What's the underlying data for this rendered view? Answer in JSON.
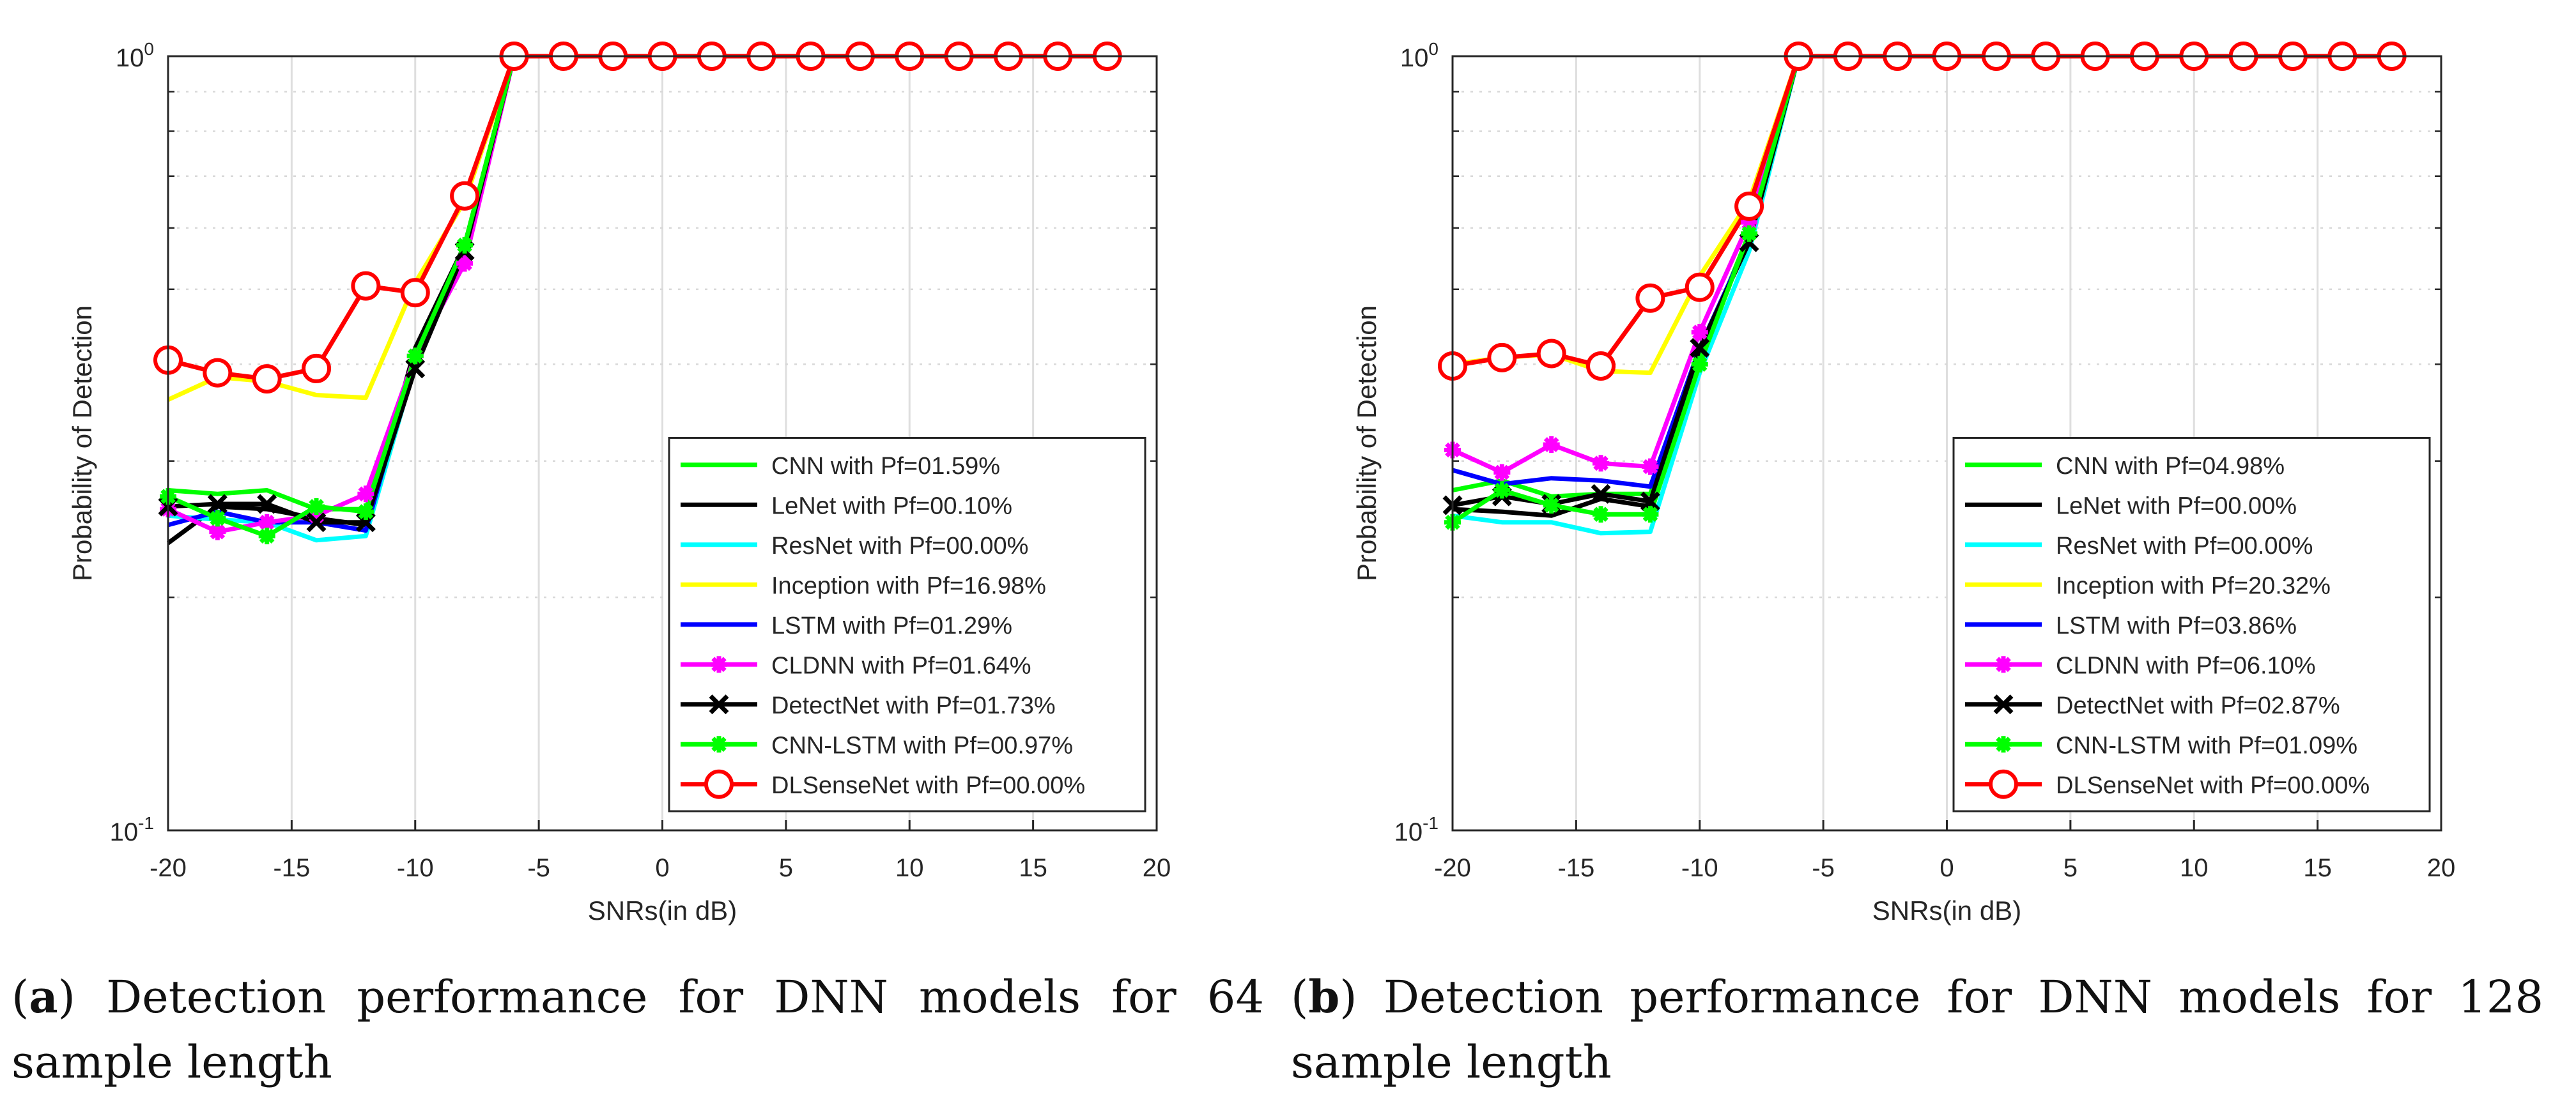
{
  "chart_data": [
    {
      "id": "a",
      "type": "line",
      "yscale": "log",
      "xlabel": "SNRs(in dB)",
      "ylabel": "Probability of Detection",
      "xlim": [
        -20,
        20
      ],
      "ylim": [
        0.1,
        1
      ],
      "xticks": [
        "-20",
        "-15",
        "-10",
        "-5",
        "0",
        "5",
        "10",
        "15",
        "20"
      ],
      "yticks": [
        {
          "base": "10",
          "exp": "-1"
        },
        {
          "base": "10",
          "exp": "0"
        }
      ],
      "grid": true,
      "legend_position": "lower-right",
      "x": [
        -20,
        -18,
        -16,
        -14,
        -12,
        -10,
        -8,
        -6,
        -4,
        -2,
        0,
        2,
        4,
        6,
        8,
        10,
        12,
        14,
        16,
        18
      ],
      "series": [
        {
          "name": "CNN with Pf=01.59%",
          "color": "#00ff00",
          "marker": "none",
          "values": [
            0.275,
            0.272,
            0.275,
            0.26,
            0.26,
            0.41,
            0.57,
            1,
            1,
            1,
            1,
            1,
            1,
            1,
            1,
            1,
            1,
            1,
            1,
            1
          ]
        },
        {
          "name": "LeNet with Pf=00.10%",
          "color": "#000000",
          "marker": "none",
          "values": [
            0.235,
            0.262,
            0.26,
            0.253,
            0.248,
            0.42,
            0.57,
            1,
            1,
            1,
            1,
            1,
            1,
            1,
            1,
            1,
            1,
            1,
            1,
            1
          ]
        },
        {
          "name": "ResNet with Pf=00.00%",
          "color": "#00ffff",
          "marker": "none",
          "values": [
            0.255,
            0.252,
            0.25,
            0.237,
            0.24,
            0.4,
            0.56,
            1,
            1,
            1,
            1,
            1,
            1,
            1,
            1,
            1,
            1,
            1,
            1,
            1
          ]
        },
        {
          "name": "Inception with Pf=16.98%",
          "color": "#ffff00",
          "marker": "none",
          "values": [
            0.36,
            0.385,
            0.38,
            0.365,
            0.362,
            0.51,
            0.65,
            1,
            1,
            1,
            1,
            1,
            1,
            1,
            1,
            1,
            1,
            1,
            1,
            1
          ]
        },
        {
          "name": "LSTM with Pf=01.29%",
          "color": "#0000ff",
          "marker": "none",
          "values": [
            0.248,
            0.258,
            0.25,
            0.25,
            0.244,
            0.41,
            0.56,
            1,
            1,
            1,
            1,
            1,
            1,
            1,
            1,
            1,
            1,
            1,
            1,
            1
          ]
        },
        {
          "name": "CLDNN with Pf=01.64%",
          "color": "#ff00ff",
          "marker": "asterisk",
          "values": [
            0.26,
            0.243,
            0.25,
            0.255,
            0.272,
            0.41,
            0.54,
            1,
            1,
            1,
            1,
            1,
            1,
            1,
            1,
            1,
            1,
            1,
            1,
            1
          ]
        },
        {
          "name": "DetectNet with Pf=01.73%",
          "color": "#000000",
          "marker": "x",
          "values": [
            0.262,
            0.264,
            0.264,
            0.25,
            0.25,
            0.395,
            0.56,
            1,
            1,
            1,
            1,
            1,
            1,
            1,
            1,
            1,
            1,
            1,
            1,
            1
          ]
        },
        {
          "name": "CNN-LSTM with Pf=00.97%",
          "color": "#00ff00",
          "marker": "asterisk",
          "values": [
            0.27,
            0.253,
            0.24,
            0.262,
            0.258,
            0.41,
            0.57,
            1,
            1,
            1,
            1,
            1,
            1,
            1,
            1,
            1,
            1,
            1,
            1,
            1
          ]
        },
        {
          "name": "DLSenseNet with Pf=00.00%",
          "color": "#ff0000",
          "marker": "circle",
          "values": [
            0.405,
            0.39,
            0.383,
            0.395,
            0.505,
            0.495,
            0.66,
            1,
            1,
            1,
            1,
            1,
            1,
            1,
            1,
            1,
            1,
            1,
            1,
            1
          ]
        }
      ]
    },
    {
      "id": "b",
      "type": "line",
      "yscale": "log",
      "xlabel": "SNRs(in dB)",
      "ylabel": "Probability of Detection",
      "xlim": [
        -20,
        20
      ],
      "ylim": [
        0.1,
        1
      ],
      "xticks": [
        "-20",
        "-15",
        "-10",
        "-5",
        "0",
        "5",
        "10",
        "15",
        "20"
      ],
      "yticks": [
        {
          "base": "10",
          "exp": "-1"
        },
        {
          "base": "10",
          "exp": "0"
        }
      ],
      "grid": true,
      "legend_position": "lower-right",
      "x": [
        -20,
        -18,
        -16,
        -14,
        -12,
        -10,
        -8,
        -6,
        -4,
        -2,
        0,
        2,
        4,
        6,
        8,
        10,
        12,
        14,
        16,
        18
      ],
      "series": [
        {
          "name": "CNN with Pf=04.98%",
          "color": "#00ff00",
          "marker": "none",
          "values": [
            0.275,
            0.283,
            0.27,
            0.272,
            0.272,
            0.41,
            0.59,
            1,
            1,
            1,
            1,
            1,
            1,
            1,
            1,
            1,
            1,
            1,
            1,
            1
          ]
        },
        {
          "name": "LeNet with Pf=00.00%",
          "color": "#000000",
          "marker": "none",
          "values": [
            0.26,
            0.258,
            0.255,
            0.268,
            0.262,
            0.42,
            0.58,
            1,
            1,
            1,
            1,
            1,
            1,
            1,
            1,
            1,
            1,
            1,
            1,
            1
          ]
        },
        {
          "name": "ResNet with Pf=00.00%",
          "color": "#00ffff",
          "marker": "none",
          "values": [
            0.255,
            0.25,
            0.25,
            0.242,
            0.243,
            0.39,
            0.56,
            1,
            1,
            1,
            1,
            1,
            1,
            1,
            1,
            1,
            1,
            1,
            1,
            1
          ]
        },
        {
          "name": "Inception with Pf=20.32%",
          "color": "#ffff00",
          "marker": "none",
          "values": [
            0.4,
            0.408,
            0.412,
            0.392,
            0.39,
            0.52,
            0.65,
            1,
            1,
            1,
            1,
            1,
            1,
            1,
            1,
            1,
            1,
            1,
            1,
            1
          ]
        },
        {
          "name": "LSTM with Pf=03.86%",
          "color": "#0000ff",
          "marker": "none",
          "values": [
            0.292,
            0.28,
            0.285,
            0.283,
            0.278,
            0.42,
            0.58,
            1,
            1,
            1,
            1,
            1,
            1,
            1,
            1,
            1,
            1,
            1,
            1,
            1
          ]
        },
        {
          "name": "CLDNN with Pf=06.10%",
          "color": "#ff00ff",
          "marker": "asterisk",
          "values": [
            0.31,
            0.29,
            0.315,
            0.298,
            0.295,
            0.44,
            0.61,
            1,
            1,
            1,
            1,
            1,
            1,
            1,
            1,
            1,
            1,
            1,
            1,
            1
          ]
        },
        {
          "name": "DetectNet with Pf=02.87%",
          "color": "#000000",
          "marker": "x",
          "values": [
            0.263,
            0.27,
            0.264,
            0.272,
            0.266,
            0.42,
            0.575,
            1,
            1,
            1,
            1,
            1,
            1,
            1,
            1,
            1,
            1,
            1,
            1,
            1
          ]
        },
        {
          "name": "CNN-LSTM with Pf=01.09%",
          "color": "#00ff00",
          "marker": "asterisk",
          "values": [
            0.25,
            0.275,
            0.263,
            0.256,
            0.256,
            0.4,
            0.59,
            1,
            1,
            1,
            1,
            1,
            1,
            1,
            1,
            1,
            1,
            1,
            1,
            1
          ]
        },
        {
          "name": "DLSenseNet with Pf=00.00%",
          "color": "#ff0000",
          "marker": "circle",
          "values": [
            0.398,
            0.408,
            0.413,
            0.398,
            0.487,
            0.503,
            0.64,
            1,
            1,
            1,
            1,
            1,
            1,
            1,
            1,
            1,
            1,
            1,
            1,
            1
          ]
        }
      ]
    }
  ],
  "captions": [
    {
      "label": "a",
      "text": "Detection performance for DNN models for 64 sample length"
    },
    {
      "label": "b",
      "text": "Detection performance for DNN models for 128 sample length"
    }
  ]
}
